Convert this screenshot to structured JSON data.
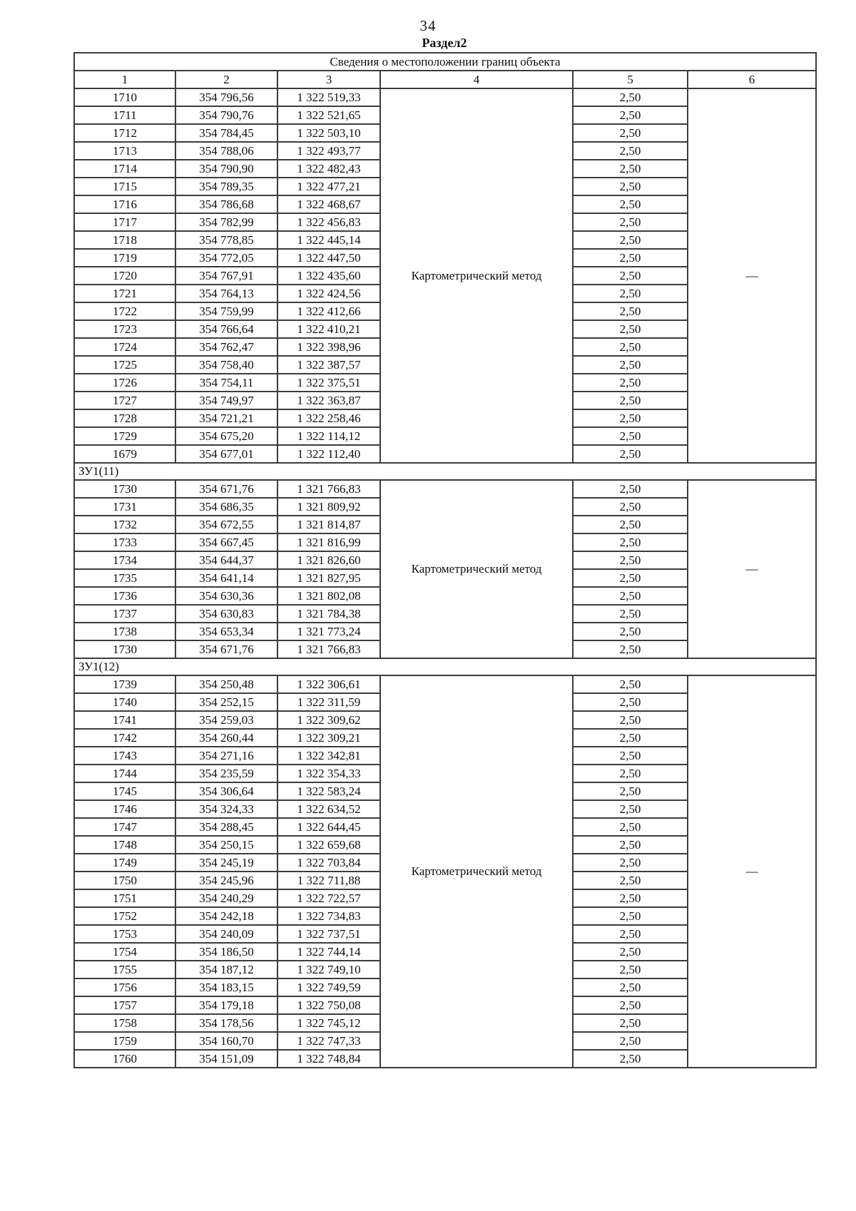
{
  "page": {
    "number": "34",
    "section_title": "Раздел2"
  },
  "table": {
    "title": "Сведения о местоположении границ объекта",
    "column_headers": [
      "1",
      "2",
      "3",
      "4",
      "5",
      "6"
    ],
    "blocks": [
      {
        "label": null,
        "method": "Картометрический метод",
        "col6": "—",
        "rows": [
          [
            "1710",
            "354 796,56",
            "1 322 519,33",
            "2,50"
          ],
          [
            "1711",
            "354 790,76",
            "1 322 521,65",
            "2,50"
          ],
          [
            "1712",
            "354 784,45",
            "1 322 503,10",
            "2,50"
          ],
          [
            "1713",
            "354 788,06",
            "1 322 493,77",
            "2,50"
          ],
          [
            "1714",
            "354 790,90",
            "1 322 482,43",
            "2,50"
          ],
          [
            "1715",
            "354 789,35",
            "1 322 477,21",
            "2,50"
          ],
          [
            "1716",
            "354 786,68",
            "1 322 468,67",
            "2,50"
          ],
          [
            "1717",
            "354 782,99",
            "1 322 456,83",
            "2,50"
          ],
          [
            "1718",
            "354 778,85",
            "1 322 445,14",
            "2,50"
          ],
          [
            "1719",
            "354 772,05",
            "1 322 447,50",
            "2,50"
          ],
          [
            "1720",
            "354 767,91",
            "1 322 435,60",
            "2,50"
          ],
          [
            "1721",
            "354 764,13",
            "1 322 424,56",
            "2,50"
          ],
          [
            "1722",
            "354 759,99",
            "1 322 412,66",
            "2,50"
          ],
          [
            "1723",
            "354 766,64",
            "1 322 410,21",
            "2,50"
          ],
          [
            "1724",
            "354 762,47",
            "1 322 398,96",
            "2,50"
          ],
          [
            "1725",
            "354 758,40",
            "1 322 387,57",
            "2,50"
          ],
          [
            "1726",
            "354 754,11",
            "1 322 375,51",
            "2,50"
          ],
          [
            "1727",
            "354 749,97",
            "1 322 363,87",
            "2,50"
          ],
          [
            "1728",
            "354 721,21",
            "1 322 258,46",
            "2,50"
          ],
          [
            "1729",
            "354 675,20",
            "1 322 114,12",
            "2,50"
          ],
          [
            "1679",
            "354 677,01",
            "1 322 112,40",
            "2,50"
          ]
        ]
      },
      {
        "label": "ЗУ1(11)",
        "method": "Картометрический метод",
        "col6": "—",
        "rows": [
          [
            "1730",
            "354 671,76",
            "1 321 766,83",
            "2,50"
          ],
          [
            "1731",
            "354 686,35",
            "1 321 809,92",
            "2,50"
          ],
          [
            "1732",
            "354 672,55",
            "1 321 814,87",
            "2,50"
          ],
          [
            "1733",
            "354 667,45",
            "1 321 816,99",
            "2,50"
          ],
          [
            "1734",
            "354 644,37",
            "1 321 826,60",
            "2,50"
          ],
          [
            "1735",
            "354 641,14",
            "1 321 827,95",
            "2,50"
          ],
          [
            "1736",
            "354 630,36",
            "1 321 802,08",
            "2,50"
          ],
          [
            "1737",
            "354 630,83",
            "1 321 784,38",
            "2,50"
          ],
          [
            "1738",
            "354 653,34",
            "1 321 773,24",
            "2,50"
          ],
          [
            "1730",
            "354 671,76",
            "1 321 766,83",
            "2,50"
          ]
        ]
      },
      {
        "label": "ЗУ1(12)",
        "method": "Картометрический метод",
        "col6": "—",
        "rows": [
          [
            "1739",
            "354 250,48",
            "1 322 306,61",
            "2,50"
          ],
          [
            "1740",
            "354 252,15",
            "1 322 311,59",
            "2,50"
          ],
          [
            "1741",
            "354 259,03",
            "1 322 309,62",
            "2,50"
          ],
          [
            "1742",
            "354 260,44",
            "1 322 309,21",
            "2,50"
          ],
          [
            "1743",
            "354 271,16",
            "1 322 342,81",
            "2,50"
          ],
          [
            "1744",
            "354 235,59",
            "1 322 354,33",
            "2,50"
          ],
          [
            "1745",
            "354 306,64",
            "1 322 583,24",
            "2,50"
          ],
          [
            "1746",
            "354 324,33",
            "1 322 634,52",
            "2,50"
          ],
          [
            "1747",
            "354 288,45",
            "1 322 644,45",
            "2,50"
          ],
          [
            "1748",
            "354 250,15",
            "1 322 659,68",
            "2,50"
          ],
          [
            "1749",
            "354 245,19",
            "1 322 703,84",
            "2,50"
          ],
          [
            "1750",
            "354 245,96",
            "1 322 711,88",
            "2,50"
          ],
          [
            "1751",
            "354 240,29",
            "1 322 722,57",
            "2,50"
          ],
          [
            "1752",
            "354 242,18",
            "1 322 734,83",
            "2,50"
          ],
          [
            "1753",
            "354 240,09",
            "1 322 737,51",
            "2,50"
          ],
          [
            "1754",
            "354 186,50",
            "1 322 744,14",
            "2,50"
          ],
          [
            "1755",
            "354 187,12",
            "1 322 749,10",
            "2,50"
          ],
          [
            "1756",
            "354 183,15",
            "1 322 749,59",
            "2,50"
          ],
          [
            "1757",
            "354 179,18",
            "1 322 750,08",
            "2,50"
          ],
          [
            "1758",
            "354 178,56",
            "1 322 745,12",
            "2,50"
          ],
          [
            "1759",
            "354 160,70",
            "1 322 747,33",
            "2,50"
          ],
          [
            "1760",
            "354 151,09",
            "1 322 748,84",
            "2,50"
          ]
        ]
      }
    ]
  }
}
